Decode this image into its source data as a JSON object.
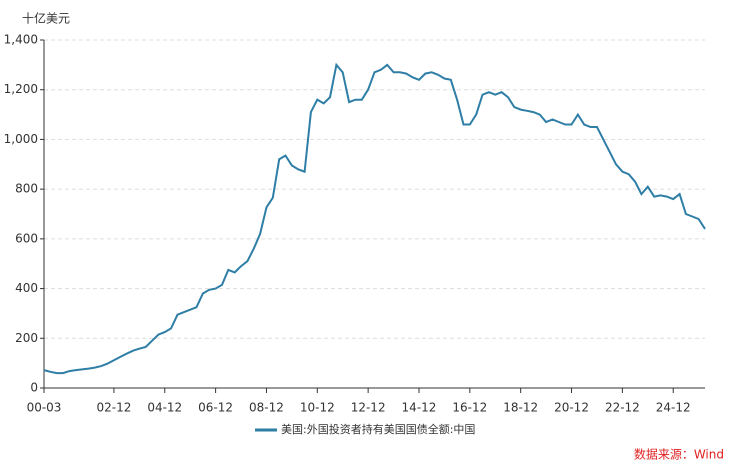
{
  "chart_data": {
    "type": "line",
    "y_axis_label": "十亿美元",
    "source": "数据来源：Wind",
    "categories": [
      "00-03",
      null,
      null,
      null,
      null,
      null,
      null,
      null,
      null,
      null,
      null,
      "02-12",
      null,
      null,
      null,
      null,
      null,
      null,
      null,
      "04-12",
      null,
      null,
      null,
      null,
      null,
      null,
      null,
      "06-12",
      null,
      null,
      null,
      null,
      null,
      null,
      null,
      "08-12",
      null,
      null,
      null,
      null,
      null,
      null,
      null,
      "10-12",
      null,
      null,
      null,
      null,
      null,
      null,
      null,
      "12-12",
      null,
      null,
      null,
      null,
      null,
      null,
      null,
      "14-12",
      null,
      null,
      null,
      null,
      null,
      null,
      null,
      "16-12",
      null,
      null,
      null,
      null,
      null,
      null,
      null,
      "18-12",
      null,
      null,
      null,
      null,
      null,
      null,
      null,
      "20-12",
      null,
      null,
      null,
      null,
      null,
      null,
      null,
      "22-12",
      null,
      null,
      null,
      null,
      null,
      null,
      null,
      "24-12",
      null,
      null,
      null,
      null,
      null
    ],
    "series": [
      {
        "name": "美国:外国投资者持有美国国债全额:中国",
        "color": "#2e7ea6",
        "values": [
          72,
          65,
          60,
          60,
          68,
          72,
          75,
          78,
          82,
          88,
          98,
          112,
          125,
          138,
          150,
          158,
          165,
          190,
          215,
          225,
          240,
          295,
          305,
          315,
          325,
          380,
          395,
          400,
          415,
          475,
          465,
          490,
          510,
          560,
          620,
          727,
          765,
          920,
          935,
          895,
          880,
          870,
          1110,
          1160,
          1145,
          1170,
          1300,
          1270,
          1150,
          1160,
          1160,
          1200,
          1270,
          1280,
          1300,
          1270,
          1270,
          1265,
          1250,
          1240,
          1265,
          1270,
          1260,
          1245,
          1240,
          1160,
          1060,
          1060,
          1100,
          1180,
          1190,
          1180,
          1190,
          1170,
          1130,
          1120,
          1115,
          1110,
          1100,
          1070,
          1080,
          1070,
          1060,
          1060,
          1100,
          1060,
          1050,
          1050,
          1000,
          950,
          900,
          870,
          860,
          830,
          780,
          810,
          770,
          775,
          770,
          760,
          780,
          700,
          690,
          680,
          640
        ]
      }
    ],
    "ylim": [
      0,
      1400
    ],
    "yticks": [
      0,
      200,
      400,
      600,
      800,
      {
        "value": 1000,
        "label": "1,000"
      },
      {
        "value": 1200,
        "label": "1,200"
      },
      {
        "value": 1400,
        "label": "1,400"
      }
    ],
    "grid": true
  }
}
